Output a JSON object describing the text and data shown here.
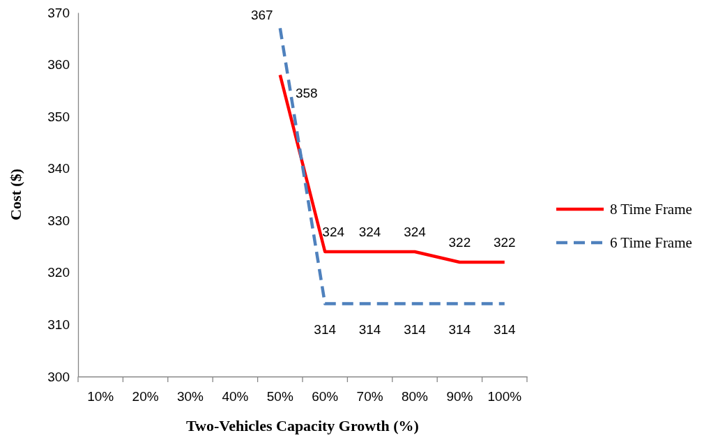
{
  "chart_data": {
    "type": "line",
    "xlabel": "Two-Vehicles Capacity Growth (%)",
    "ylabel": "Cost ($)",
    "categories": [
      "10%",
      "20%",
      "30%",
      "40%",
      "50%",
      "60%",
      "70%",
      "80%",
      "90%",
      "100%"
    ],
    "series": [
      {
        "name": "8 Time Frame",
        "color": "#ff0000",
        "line_style": "solid",
        "values": [
          null,
          null,
          null,
          null,
          358,
          324,
          324,
          324,
          322,
          322
        ]
      },
      {
        "name": "6 Time Frame",
        "color": "#4f81bd",
        "line_style": "dashed",
        "values": [
          null,
          null,
          null,
          null,
          367,
          314,
          314,
          314,
          314,
          314
        ]
      }
    ],
    "ylim": [
      300,
      370
    ],
    "yticks": [
      300,
      310,
      320,
      330,
      340,
      350,
      360,
      370
    ],
    "grid": false,
    "legend": "right",
    "marker": "none",
    "data_labels": true
  }
}
